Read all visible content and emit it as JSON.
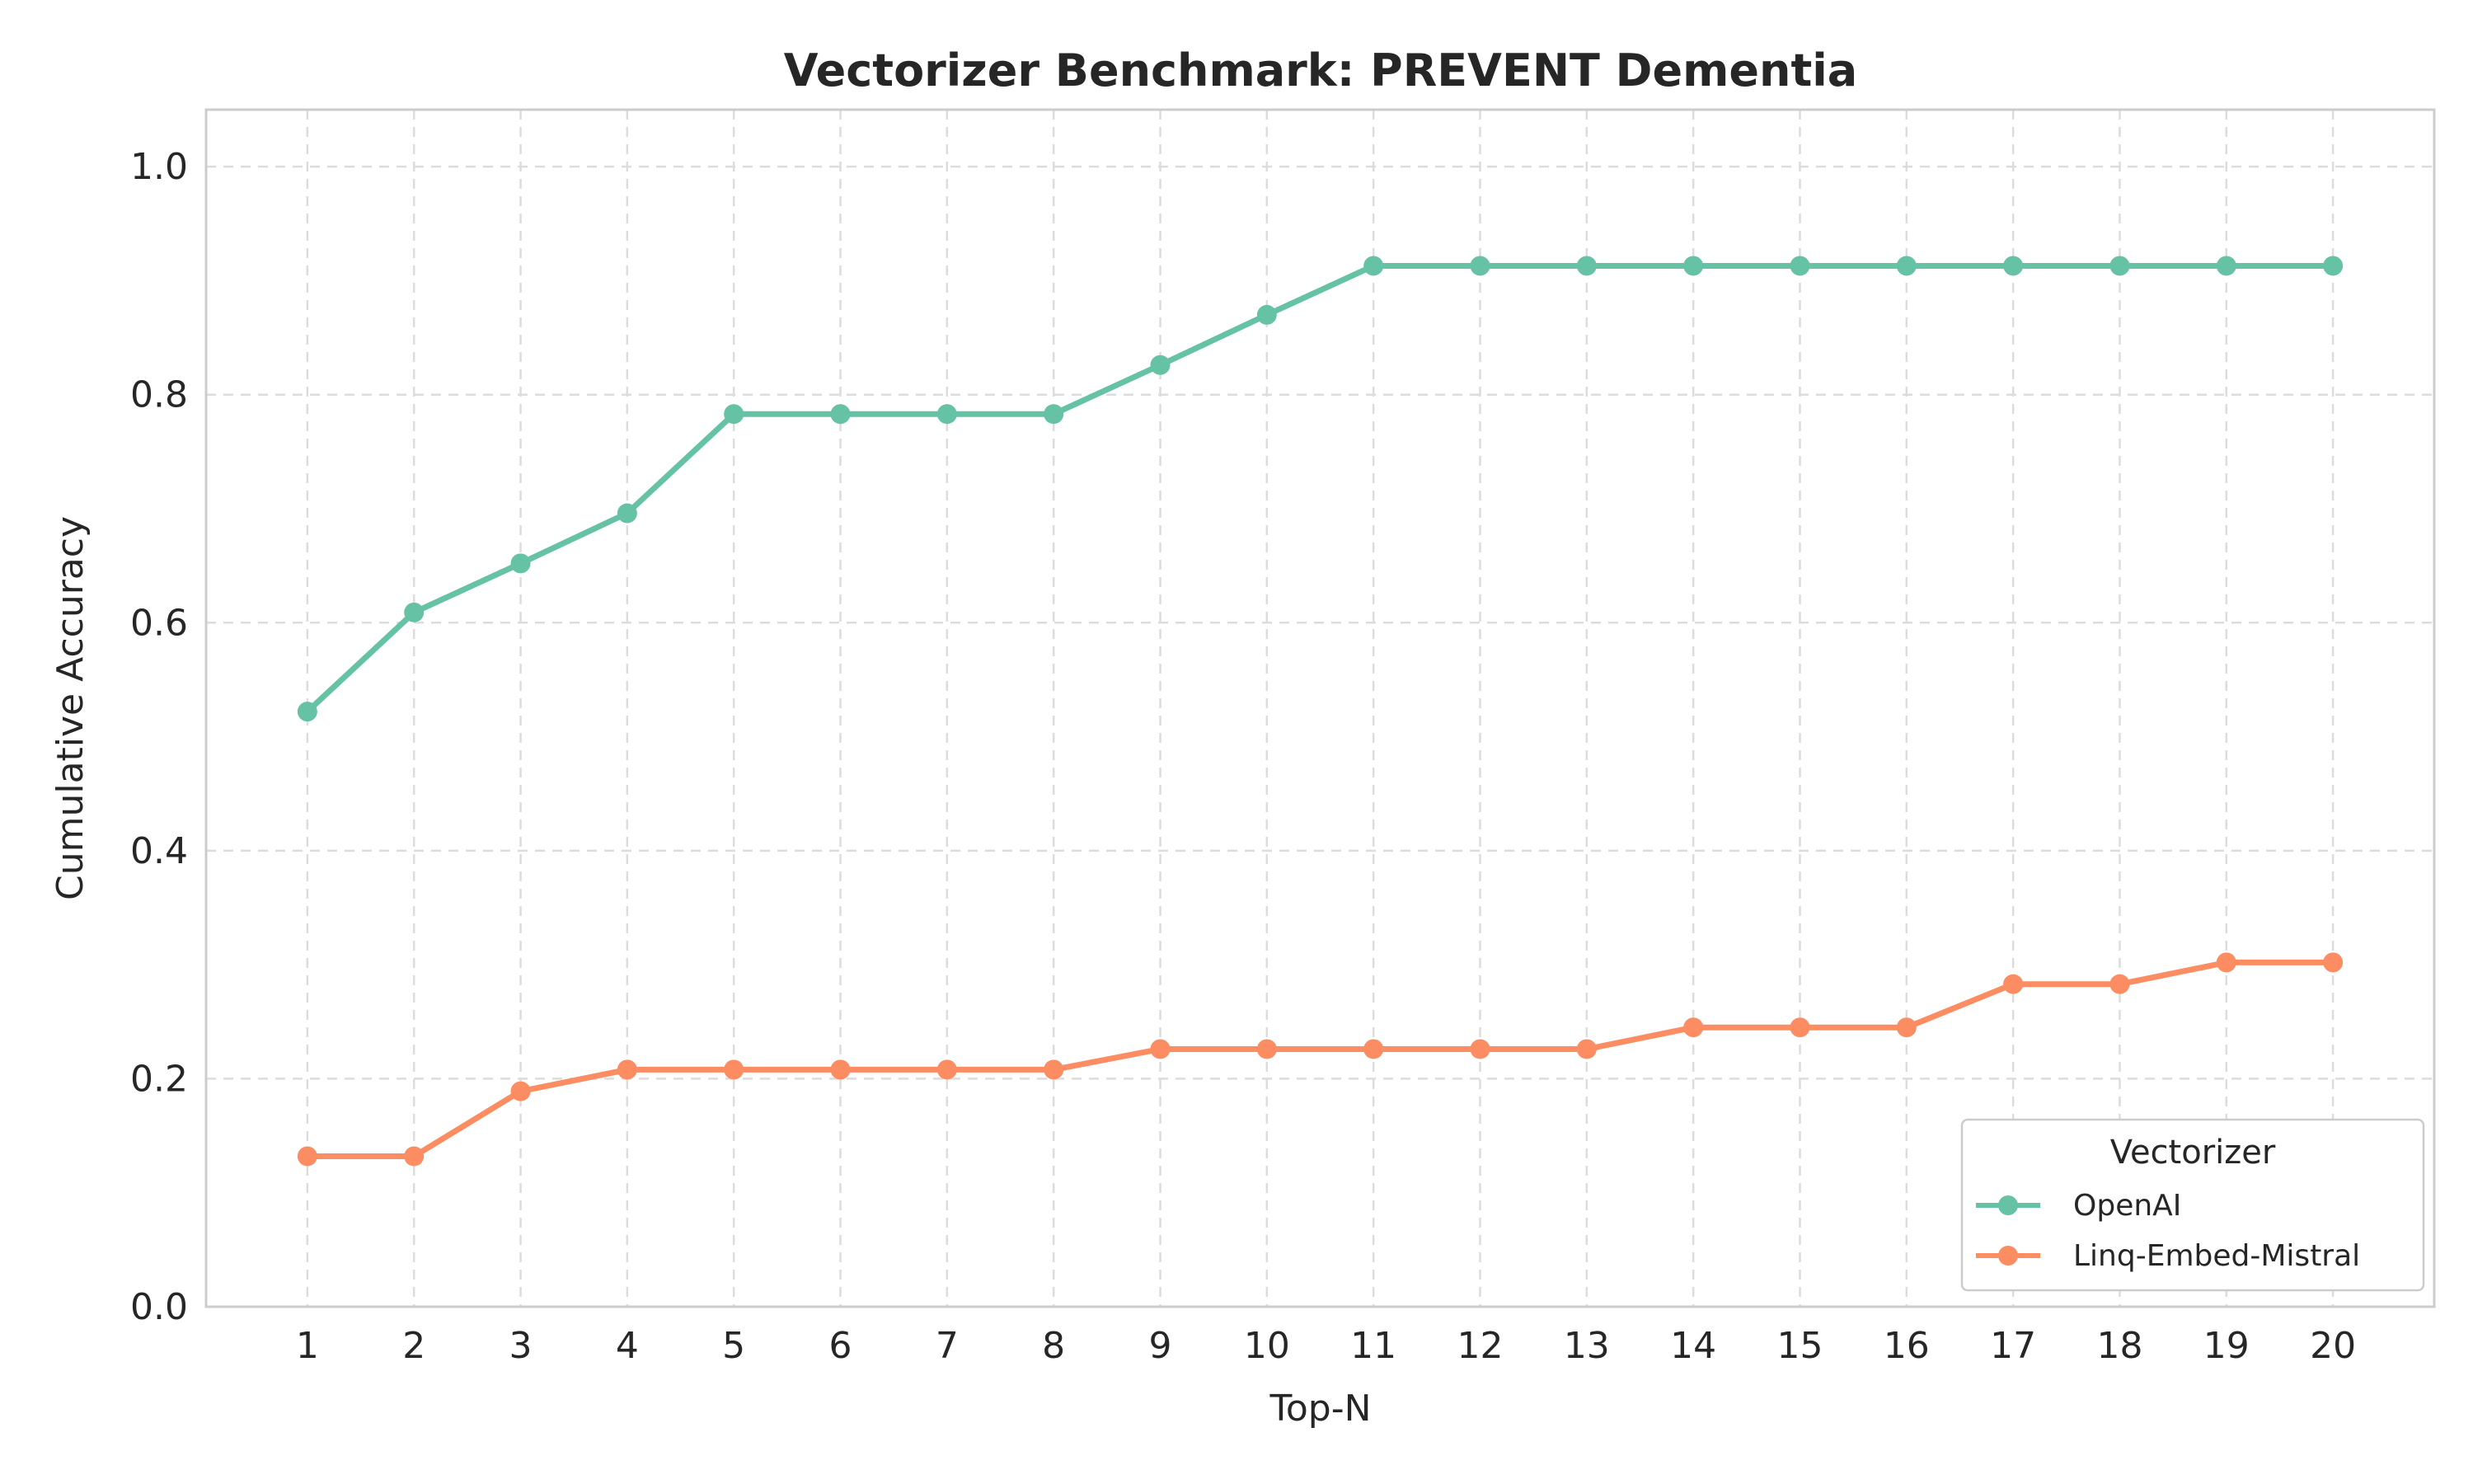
{
  "chart_data": {
    "type": "line",
    "title": "Vectorizer Benchmark: PREVENT Dementia",
    "xlabel": "Top-N",
    "ylabel": "Cumulative Accuracy",
    "x": [
      1,
      2,
      3,
      4,
      5,
      6,
      7,
      8,
      9,
      10,
      11,
      12,
      13,
      14,
      15,
      16,
      17,
      18,
      19,
      20
    ],
    "x_tick_labels": [
      "1",
      "2",
      "3",
      "4",
      "5",
      "6",
      "7",
      "8",
      "9",
      "10",
      "11",
      "12",
      "13",
      "14",
      "15",
      "16",
      "17",
      "18",
      "19",
      "20"
    ],
    "xlim": [
      0.05,
      20.95
    ],
    "ylim": [
      0.0,
      1.05
    ],
    "y_ticks": [
      0.0,
      0.2,
      0.4,
      0.6,
      0.8,
      1.0
    ],
    "y_tick_labels": [
      "0.0",
      "0.2",
      "0.4",
      "0.6",
      "0.8",
      "1.0"
    ],
    "grid": true,
    "legend": {
      "title": "Vectorizer",
      "placement": "lower-right"
    },
    "series": [
      {
        "name": "OpenAI",
        "color": "#66c2a5",
        "marker": "circle",
        "values": [
          0.522,
          0.609,
          0.652,
          0.696,
          0.783,
          0.783,
          0.783,
          0.783,
          0.826,
          0.87,
          0.913,
          0.913,
          0.913,
          0.913,
          0.913,
          0.913,
          0.913,
          0.913,
          0.913,
          0.913
        ]
      },
      {
        "name": "Linq-Embed-Mistral",
        "color": "#fc8d62",
        "marker": "circle",
        "values": [
          0.132,
          0.132,
          0.189,
          0.208,
          0.208,
          0.208,
          0.208,
          0.208,
          0.226,
          0.226,
          0.226,
          0.226,
          0.226,
          0.245,
          0.245,
          0.245,
          0.283,
          0.283,
          0.302,
          0.302
        ]
      }
    ]
  }
}
